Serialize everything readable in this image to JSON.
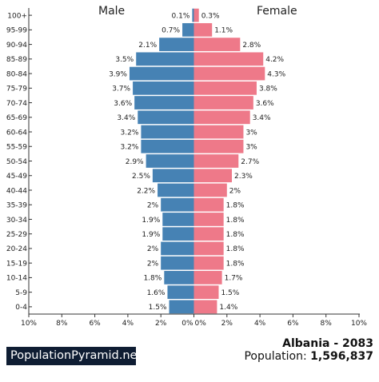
{
  "header": {
    "male_label": "Male",
    "female_label": "Female"
  },
  "footer": {
    "brand": "PopulationPyramid.net",
    "country_year": "Albania - 2083",
    "population_label": "Population:",
    "population_value": "1,596,837"
  },
  "colors": {
    "male": "#4682b4",
    "female": "#ee7989",
    "axis": "#333333"
  },
  "chart_data": {
    "type": "bar",
    "orientation": "horizontal-mirrored",
    "categories": [
      "100+",
      "95-99",
      "90-94",
      "85-89",
      "80-84",
      "75-79",
      "70-74",
      "65-69",
      "60-64",
      "55-59",
      "50-54",
      "45-49",
      "40-44",
      "35-39",
      "30-34",
      "25-29",
      "20-24",
      "15-19",
      "10-14",
      "5-9",
      "0-4"
    ],
    "series": [
      {
        "name": "Male",
        "values": [
          0.1,
          0.7,
          2.1,
          3.5,
          3.9,
          3.7,
          3.6,
          3.4,
          3.2,
          3.2,
          2.9,
          2.5,
          2.2,
          2.0,
          1.9,
          1.9,
          2.0,
          2.0,
          1.8,
          1.6,
          1.5
        ]
      },
      {
        "name": "Female",
        "values": [
          0.3,
          1.1,
          2.8,
          4.2,
          4.3,
          3.8,
          3.6,
          3.4,
          3.0,
          3.0,
          2.7,
          2.3,
          2.0,
          1.8,
          1.8,
          1.8,
          1.8,
          1.8,
          1.7,
          1.5,
          1.4
        ]
      }
    ],
    "xlim": [
      -10,
      10
    ],
    "x_ticks": [
      "10%",
      "8%",
      "6%",
      "4%",
      "2%",
      "0%",
      "0%",
      "2%",
      "4%",
      "6%",
      "8%",
      "10%"
    ],
    "unit": "%"
  }
}
